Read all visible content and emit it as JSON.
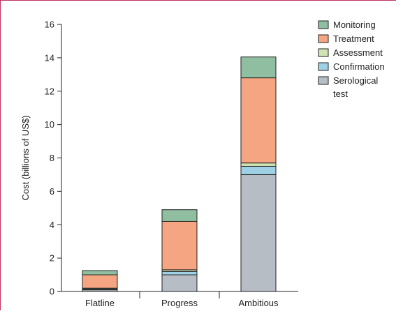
{
  "chart_data": {
    "type": "bar",
    "stacked": true,
    "categories": [
      "Flatline",
      "Progress",
      "Ambitious"
    ],
    "series": [
      {
        "name": "Serological test",
        "color": "#b6bdc4",
        "values": [
          0.1,
          1.0,
          7.0
        ]
      },
      {
        "name": "Confirmation",
        "color": "#9fd1e6",
        "values": [
          0.05,
          0.2,
          0.5
        ]
      },
      {
        "name": "Assessment",
        "color": "#cfe3b3",
        "values": [
          0.05,
          0.1,
          0.2
        ]
      },
      {
        "name": "Treatment",
        "color": "#f6a583",
        "values": [
          0.8,
          2.9,
          5.1
        ]
      },
      {
        "name": "Monitoring",
        "color": "#8fbfa0",
        "values": [
          0.25,
          0.7,
          1.25
        ]
      }
    ],
    "legend_order": [
      "Monitoring",
      "Treatment",
      "Assessment",
      "Confirmation",
      "Serological test"
    ],
    "ylabel": "Cost (billions of US$)",
    "xlabel": "",
    "ylim": [
      0,
      16
    ],
    "yticks": [
      0,
      2,
      4,
      6,
      8,
      10,
      12,
      14,
      16
    ],
    "grid": false,
    "legend_position": "top-right"
  }
}
